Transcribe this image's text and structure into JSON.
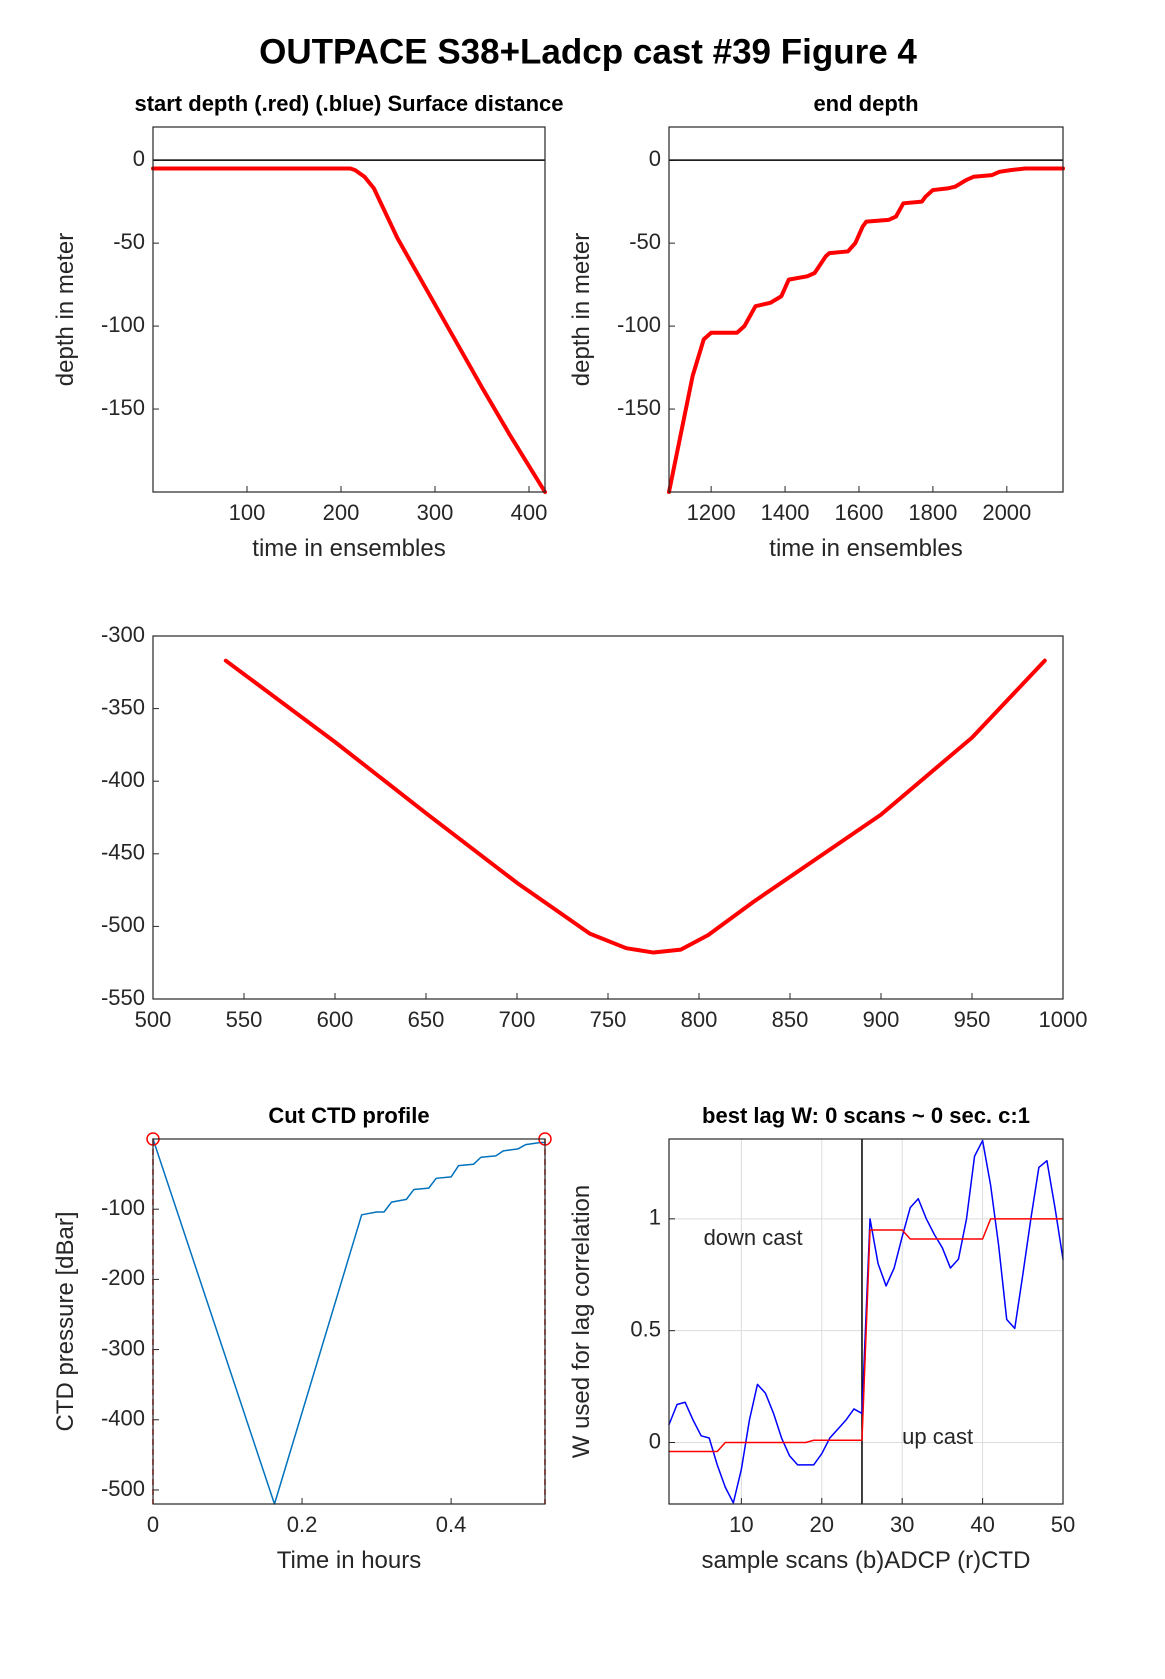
{
  "title": "OUTPACE S38+Ladcp cast #39   Figure 4",
  "chart_data": [
    {
      "type": "line",
      "title": "start depth (.red) (.blue) Surface distance",
      "xlabel": "time in ensembles",
      "ylabel": "depth in meter",
      "xlim": [
        0,
        417
      ],
      "ylim": [
        -200,
        20
      ],
      "xticks": [
        100,
        200,
        300,
        400
      ],
      "yticks": [
        -150,
        -100,
        -50,
        0
      ],
      "grid": false,
      "hline": 0,
      "series": [
        {
          "color": "#ff0000",
          "width": 4,
          "x": [
            0,
            210,
            215,
            225,
            235,
            260,
            290,
            320,
            350,
            380,
            417
          ],
          "values": [
            -5,
            -5,
            -6,
            -10,
            -17,
            -47,
            -77,
            -107,
            -137,
            -166,
            -200
          ]
        }
      ]
    },
    {
      "type": "line",
      "title": "end depth",
      "xlabel": "time in ensembles",
      "ylabel": "depth in meter",
      "xlim": [
        1086,
        2152
      ],
      "ylim": [
        -200,
        20
      ],
      "xticks": [
        1200,
        1400,
        1600,
        1800,
        2000
      ],
      "yticks": [
        -150,
        -100,
        -50,
        0
      ],
      "grid": false,
      "hline": 0,
      "series": [
        {
          "color": "#ff0000",
          "width": 4,
          "x": [
            1086,
            1150,
            1180,
            1200,
            1270,
            1290,
            1320,
            1360,
            1390,
            1410,
            1460,
            1480,
            1510,
            1520,
            1570,
            1590,
            1610,
            1620,
            1680,
            1700,
            1720,
            1770,
            1780,
            1800,
            1840,
            1860,
            1890,
            1910,
            1960,
            1980,
            2010,
            2050,
            2152
          ],
          "values": [
            -200,
            -130,
            -108,
            -104,
            -104,
            -100,
            -88,
            -86,
            -82,
            -72,
            -70,
            -68,
            -58,
            -56,
            -55,
            -50,
            -40,
            -37,
            -36,
            -34,
            -26,
            -25,
            -22,
            -18,
            -17,
            -16,
            -12,
            -10,
            -9,
            -7,
            -6,
            -5,
            -5
          ]
        }
      ]
    },
    {
      "type": "line",
      "xlim": [
        500,
        1000
      ],
      "ylim": [
        -550,
        -300
      ],
      "xticks": [
        500,
        550,
        600,
        650,
        700,
        750,
        800,
        850,
        900,
        950,
        1000
      ],
      "yticks": [
        -550,
        -500,
        -450,
        -400,
        -350,
        -300
      ],
      "grid": false,
      "series": [
        {
          "color": "#ff0000",
          "width": 4,
          "x": [
            540,
            600,
            650,
            700,
            740,
            760,
            775,
            790,
            805,
            830,
            900,
            950,
            990
          ],
          "values": [
            -317,
            -373,
            -422,
            -470,
            -505,
            -515,
            -518,
            -516,
            -506,
            -483,
            -423,
            -370,
            -317
          ]
        }
      ]
    },
    {
      "type": "line",
      "title": "Cut CTD profile",
      "xlabel": "Time in hours",
      "ylabel": "CTD pressure [dBar]",
      "xlim": [
        0,
        0.526
      ],
      "ylim": [
        -520,
        0
      ],
      "xticks": [
        0,
        0.2,
        0.4
      ],
      "yticks": [
        -500,
        -400,
        -300,
        -200,
        -100
      ],
      "grid": false,
      "series": [
        {
          "color": "#0072bd",
          "width": 1.5,
          "x": [
            0,
            0.163,
            0.28,
            0.3,
            0.31,
            0.32,
            0.33,
            0.34,
            0.35,
            0.37,
            0.38,
            0.4,
            0.41,
            0.43,
            0.44,
            0.46,
            0.47,
            0.49,
            0.5,
            0.52,
            0.526
          ],
          "values": [
            0,
            -520,
            -108,
            -104,
            -104,
            -90,
            -88,
            -86,
            -72,
            -70,
            -56,
            -54,
            -38,
            -36,
            -26,
            -24,
            -17,
            -14,
            -8,
            -5,
            -5
          ]
        },
        {
          "color": "#ff0000",
          "width": 1.5,
          "style": "cut",
          "x": [
            0,
            0.526
          ],
          "values": [
            0,
            0
          ]
        }
      ]
    },
    {
      "type": "line",
      "title": "best lag W: 0 scans ~ 0 sec.  c:1",
      "xlabel": "sample scans (b)ADCP (r)CTD",
      "ylabel": "W used for lag correlation",
      "xlim": [
        1,
        50
      ],
      "ylim": [
        -0.275,
        1.357
      ],
      "xticks": [
        10,
        20,
        30,
        40,
        50
      ],
      "yticks": [
        0,
        0.5,
        1
      ],
      "grid": true,
      "vline": 25,
      "annotations": [
        {
          "text": "down cast",
          "x": 5.3,
          "y": 0.91
        },
        {
          "text": "up cast",
          "x": 30,
          "y": 0.02
        }
      ],
      "series": [
        {
          "color": "#0000ff",
          "width": 1.5,
          "x": [
            1,
            2,
            3,
            4,
            5,
            6,
            7,
            8,
            9,
            10,
            11,
            12,
            13,
            14,
            15,
            16,
            17,
            18,
            19,
            20,
            21,
            22,
            23,
            24,
            25,
            26,
            27,
            28,
            29,
            30,
            31,
            32,
            33,
            34,
            35,
            36,
            37,
            38,
            39,
            40,
            41,
            42,
            43,
            44,
            45,
            46,
            47,
            48,
            49,
            50
          ],
          "values": [
            0.08,
            0.17,
            0.18,
            0.1,
            0.03,
            0.02,
            -0.1,
            -0.2,
            -0.27,
            -0.12,
            0.1,
            0.26,
            0.22,
            0.13,
            0.02,
            -0.06,
            -0.1,
            -0.1,
            -0.1,
            -0.05,
            0.02,
            0.06,
            0.1,
            0.15,
            0.13,
            1.0,
            0.8,
            0.7,
            0.78,
            0.92,
            1.05,
            1.09,
            1.0,
            0.93,
            0.87,
            0.78,
            0.82,
            1.0,
            1.28,
            1.35,
            1.15,
            0.88,
            0.55,
            0.51,
            0.75,
            1.0,
            1.23,
            1.26,
            1.05,
            0.82
          ]
        },
        {
          "color": "#ff0000",
          "width": 1.5,
          "x": [
            1,
            2,
            3,
            4,
            5,
            6,
            7,
            8,
            9,
            10,
            11,
            12,
            13,
            14,
            15,
            16,
            17,
            18,
            19,
            20,
            21,
            22,
            23,
            24,
            25,
            26,
            27,
            28,
            29,
            30,
            31,
            32,
            33,
            34,
            35,
            36,
            37,
            38,
            39,
            40,
            41,
            42,
            43,
            44,
            45,
            46,
            47,
            48,
            49,
            50
          ],
          "values": [
            -0.04,
            -0.04,
            -0.04,
            -0.04,
            -0.04,
            -0.04,
            -0.04,
            0,
            0,
            0,
            0,
            0,
            0,
            0,
            0,
            0,
            0,
            0,
            0.01,
            0.01,
            0.01,
            0.01,
            0.01,
            0.01,
            0.01,
            0.95,
            0.95,
            0.95,
            0.95,
            0.95,
            0.91,
            0.91,
            0.91,
            0.91,
            0.91,
            0.91,
            0.91,
            0.91,
            0.91,
            0.91,
            1,
            1,
            1,
            1,
            1,
            1,
            1,
            1,
            1,
            1
          ]
        }
      ]
    }
  ]
}
